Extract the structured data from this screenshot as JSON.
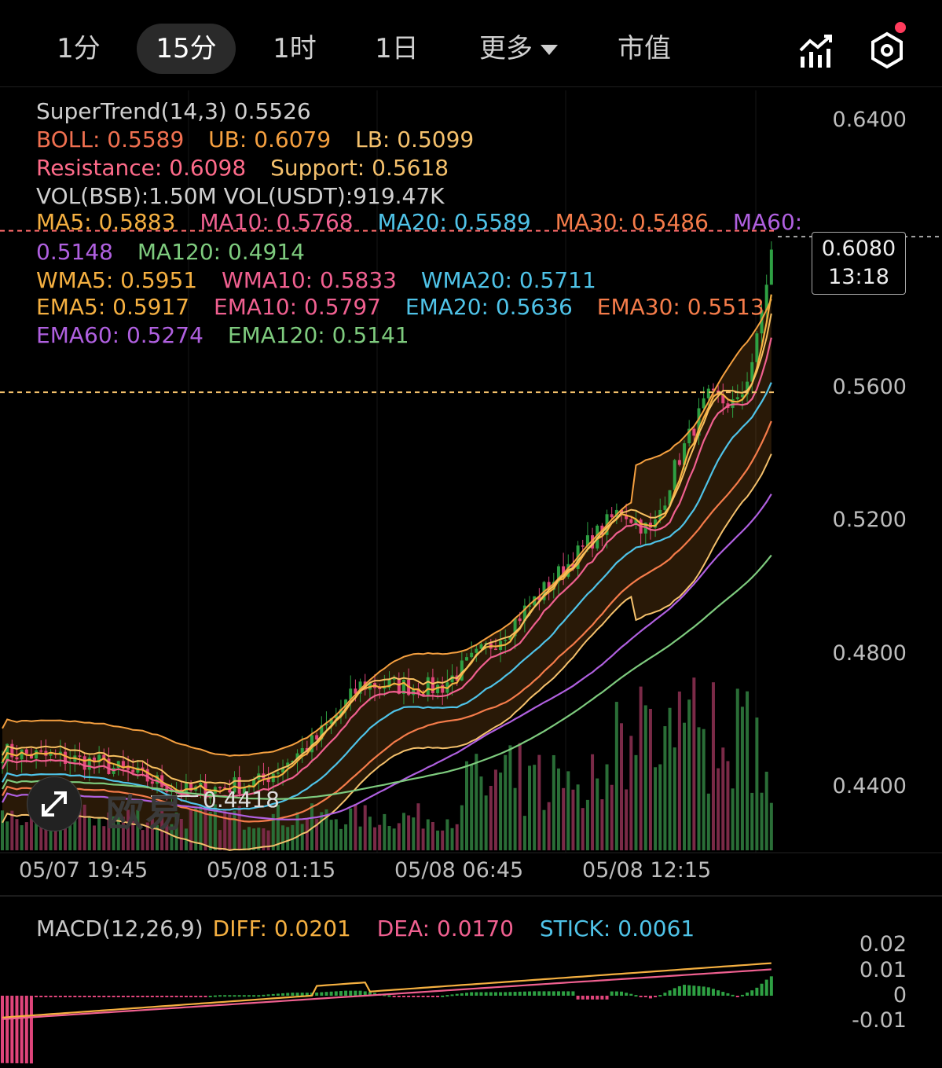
{
  "tabs": [
    {
      "label": "1分"
    },
    {
      "label": "15分"
    },
    {
      "label": "1时"
    },
    {
      "label": "1日"
    },
    {
      "label": "更多"
    },
    {
      "label": "市值"
    }
  ],
  "indicators": {
    "supertrend": "SuperTrend(14,3) 0.5526",
    "boll": "BOLL: 0.5589",
    "ub": "UB: 0.6079",
    "lb": "LB: 0.5099",
    "resistance": "Resistance: 0.6098",
    "support": "Support: 0.5618",
    "vol": "VOL(BSB):1.50M VOL(USDT):919.47K",
    "ma5": "MA5: 0.5883",
    "ma10": "MA10: 0.5768",
    "ma20": "MA20: 0.5589",
    "ma30": "MA30: 0.5486",
    "ma60_label": "MA60:",
    "ma60_value": "0.5148",
    "ma120": "MA120: 0.4914",
    "wma5": "WMA5: 0.5951",
    "wma10": "WMA10: 0.5833",
    "wma20": "WMA20: 0.5711",
    "ema5": "EMA5: 0.5917",
    "ema10": "EMA10: 0.5797",
    "ema20": "EMA20: 0.5636",
    "ema30": "EMA30: 0.5513",
    "ema60": "EMA60: 0.5274",
    "ema120": "EMA120: 0.5141"
  },
  "price_axis": [
    "0.6400",
    "0.5600",
    "0.5200",
    "0.4800",
    "0.4400"
  ],
  "current_price": {
    "price": "0.6080",
    "countdown": "13:18"
  },
  "low_marker": "0.4418",
  "watermark": "欧易",
  "time_axis": [
    "05/07 19:45",
    "05/08 01:15",
    "05/08 06:45",
    "05/08 12:15"
  ],
  "macd": {
    "label": "MACD(12,26,9)",
    "diff": "DIFF: 0.0201",
    "dea": "DEA: 0.0170",
    "stick": "STICK: 0.0061",
    "axis": [
      "0.02",
      "0.01",
      "0",
      "-0.01"
    ]
  },
  "colors": {
    "up": "#2ea043",
    "down": "#e0457b",
    "ma5": "#f5b041",
    "ma10": "#f06090",
    "ma20": "#4fc3e8",
    "ma30": "#f57c4a",
    "ma60": "#b060e0",
    "ma120": "#7ecb7e",
    "boll": "#f5a040",
    "resistance": "#ff6b6b",
    "support": "#f5c16c"
  },
  "icons": [
    "chart-indicator-icon",
    "settings-hexagon-icon",
    "expand-icon"
  ],
  "chart_data": {
    "type": "candlestick",
    "price_range": [
      0.425,
      0.6515
    ],
    "last_price": 0.608,
    "resistance": 0.6098,
    "support": 0.5618,
    "low": 0.4418,
    "close_trend": [
      {
        "t": "05/07 19:45",
        "v": 0.455
      },
      {
        "t": "05/08 01:15",
        "v": 0.462
      },
      {
        "t": "05/08 06:45",
        "v": 0.48
      },
      {
        "t": "05/08 12:15",
        "v": 0.527
      },
      {
        "t": "last",
        "v": 0.608
      }
    ]
  }
}
